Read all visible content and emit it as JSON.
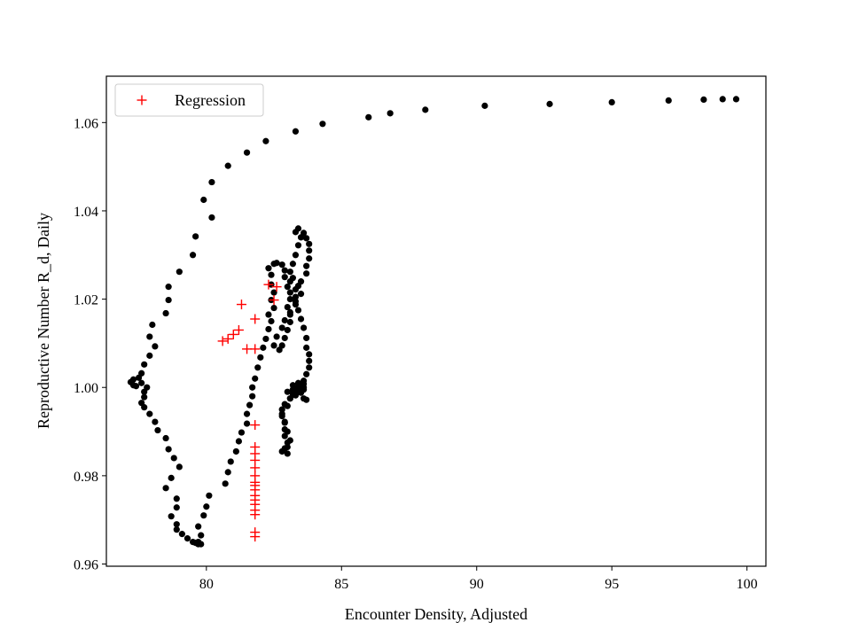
{
  "chart_data": {
    "type": "scatter",
    "title": "",
    "xlabel": "Encounter Density, Adjusted",
    "ylabel": "Reproductive Number R_d, Daily",
    "xlim": [
      76.3,
      100.7
    ],
    "ylim": [
      0.9595,
      1.0705
    ],
    "xticks": [
      80,
      85,
      90,
      95,
      100
    ],
    "yticks": [
      0.96,
      0.98,
      1.0,
      1.02,
      1.04,
      1.06
    ],
    "ytick_labels": [
      "0.96",
      "0.98",
      "1.00",
      "1.02",
      "1.04",
      "1.06"
    ],
    "grid": false,
    "legend": {
      "placement": "top-left",
      "entries": [
        {
          "label": "Regression",
          "marker": "+",
          "color": "#ff0000"
        }
      ]
    },
    "series": [
      {
        "marker": "dot",
        "color": "#000000",
        "points": [
          [
            99.6,
            1.0653
          ],
          [
            99.1,
            1.0653
          ],
          [
            98.4,
            1.0652
          ],
          [
            97.1,
            1.065
          ],
          [
            95.0,
            1.0646
          ],
          [
            92.7,
            1.0642
          ],
          [
            90.3,
            1.0638
          ],
          [
            88.1,
            1.0629
          ],
          [
            86.8,
            1.0621
          ],
          [
            86.0,
            1.0612
          ],
          [
            84.3,
            1.0597
          ],
          [
            83.3,
            1.058
          ],
          [
            82.2,
            1.0558
          ],
          [
            81.5,
            1.0532
          ],
          [
            80.8,
            1.0502
          ],
          [
            80.2,
            1.0465
          ],
          [
            79.9,
            1.0425
          ],
          [
            80.2,
            1.0385
          ],
          [
            79.6,
            1.0342
          ],
          [
            79.5,
            1.03
          ],
          [
            79.0,
            1.0262
          ],
          [
            78.6,
            1.0228
          ],
          [
            78.6,
            1.0198
          ],
          [
            78.5,
            1.0168
          ],
          [
            78.0,
            1.0142
          ],
          [
            77.9,
            1.0115
          ],
          [
            78.1,
            1.0093
          ],
          [
            77.9,
            1.0072
          ],
          [
            77.7,
            1.0052
          ],
          [
            77.6,
            1.0032
          ],
          [
            77.5,
            1.0022
          ],
          [
            77.3,
            1.0018
          ],
          [
            77.2,
            1.0012
          ],
          [
            77.3,
            1.0005
          ],
          [
            77.4,
            1.0003
          ],
          [
            77.6,
            1.001
          ],
          [
            77.8,
            1.0
          ],
          [
            77.7,
            0.999
          ],
          [
            77.7,
            0.9978
          ],
          [
            77.6,
            0.9965
          ],
          [
            77.7,
            0.9955
          ],
          [
            77.9,
            0.994
          ],
          [
            78.1,
            0.9922
          ],
          [
            78.2,
            0.9903
          ],
          [
            78.5,
            0.9885
          ],
          [
            78.6,
            0.986
          ],
          [
            78.8,
            0.984
          ],
          [
            79.0,
            0.982
          ],
          [
            78.7,
            0.9795
          ],
          [
            78.5,
            0.9772
          ],
          [
            78.9,
            0.9748
          ],
          [
            78.9,
            0.9728
          ],
          [
            78.7,
            0.9708
          ],
          [
            78.9,
            0.969
          ],
          [
            78.9,
            0.9678
          ],
          [
            79.1,
            0.9668
          ],
          [
            79.3,
            0.9658
          ],
          [
            79.5,
            0.965
          ],
          [
            79.6,
            0.9648
          ],
          [
            79.7,
            0.9645
          ],
          [
            79.8,
            0.9645
          ],
          [
            79.7,
            0.965
          ],
          [
            79.8,
            0.9665
          ],
          [
            79.7,
            0.9685
          ],
          [
            79.9,
            0.971
          ],
          [
            80.0,
            0.973
          ],
          [
            80.1,
            0.9755
          ],
          [
            80.7,
            0.9782
          ],
          [
            80.8,
            0.9808
          ],
          [
            80.9,
            0.9832
          ],
          [
            81.1,
            0.9855
          ],
          [
            81.2,
            0.9878
          ],
          [
            81.3,
            0.9898
          ],
          [
            81.5,
            0.9918
          ],
          [
            81.5,
            0.994
          ],
          [
            81.6,
            0.996
          ],
          [
            81.7,
            0.998
          ],
          [
            81.7,
            1.0
          ],
          [
            81.8,
            1.002
          ],
          [
            81.9,
            1.0045
          ],
          [
            82.0,
            1.0068
          ],
          [
            82.1,
            1.009
          ],
          [
            82.2,
            1.011
          ],
          [
            82.3,
            1.0132
          ],
          [
            82.4,
            1.015
          ],
          [
            82.3,
            1.0165
          ],
          [
            82.5,
            1.018
          ],
          [
            82.4,
            1.0198
          ],
          [
            82.5,
            1.0215
          ],
          [
            82.4,
            1.0233
          ],
          [
            82.4,
            1.0255
          ],
          [
            82.3,
            1.027
          ],
          [
            82.5,
            1.028
          ],
          [
            82.6,
            1.0282
          ],
          [
            82.8,
            1.0278
          ],
          [
            82.9,
            1.0265
          ],
          [
            82.9,
            1.025
          ],
          [
            83.1,
            1.024
          ],
          [
            83.0,
            1.0228
          ],
          [
            83.1,
            1.0215
          ],
          [
            83.1,
            1.02
          ],
          [
            83.0,
            1.0182
          ],
          [
            83.1,
            1.0165
          ],
          [
            83.1,
            1.0148
          ],
          [
            83.0,
            1.013
          ],
          [
            82.9,
            1.0112
          ],
          [
            82.8,
            1.0095
          ],
          [
            82.7,
            1.0085
          ],
          [
            82.5,
            1.0095
          ],
          [
            82.6,
            1.0115
          ],
          [
            82.8,
            1.0135
          ],
          [
            82.9,
            1.0152
          ],
          [
            83.1,
            1.017
          ],
          [
            83.3,
            1.0188
          ],
          [
            83.3,
            1.0205
          ],
          [
            83.3,
            1.0222
          ],
          [
            83.5,
            1.024
          ],
          [
            83.7,
            1.0258
          ],
          [
            83.7,
            1.0275
          ],
          [
            83.8,
            1.0292
          ],
          [
            83.8,
            1.031
          ],
          [
            83.8,
            1.0325
          ],
          [
            83.7,
            1.0338
          ],
          [
            83.6,
            1.035
          ],
          [
            83.4,
            1.036
          ],
          [
            83.3,
            1.0352
          ],
          [
            83.5,
            1.034
          ],
          [
            83.4,
            1.0322
          ],
          [
            83.3,
            1.03
          ],
          [
            83.2,
            1.028
          ],
          [
            83.1,
            1.0262
          ],
          [
            83.2,
            1.0248
          ],
          [
            83.4,
            1.023
          ],
          [
            83.5,
            1.0212
          ],
          [
            83.3,
            1.0195
          ],
          [
            83.4,
            1.0175
          ],
          [
            83.5,
            1.0155
          ],
          [
            83.6,
            1.0135
          ],
          [
            83.7,
            1.0112
          ],
          [
            83.7,
            1.009
          ],
          [
            83.8,
            1.0075
          ],
          [
            83.8,
            1.006
          ],
          [
            83.8,
            1.0045
          ],
          [
            83.7,
            1.003
          ],
          [
            83.6,
            1.0015
          ],
          [
            83.6,
            1.0
          ],
          [
            83.4,
            0.9995
          ],
          [
            83.3,
            0.9985
          ],
          [
            83.1,
            0.9975
          ],
          [
            82.9,
            0.9962
          ],
          [
            82.8,
            0.995
          ],
          [
            82.8,
            0.9935
          ],
          [
            82.9,
            0.992
          ],
          [
            82.9,
            0.9905
          ],
          [
            82.9,
            0.989
          ],
          [
            83.0,
            0.9875
          ],
          [
            82.9,
            0.9862
          ],
          [
            82.8,
            0.9855
          ],
          [
            83.0,
            0.985
          ],
          [
            83.0,
            0.9865
          ],
          [
            83.1,
            0.988
          ],
          [
            83.0,
            0.99
          ],
          [
            82.9,
            0.9922
          ],
          [
            82.8,
            0.994
          ],
          [
            83.0,
            0.9958
          ],
          [
            83.1,
            0.9975
          ],
          [
            83.2,
            0.9985
          ],
          [
            83.4,
            0.999
          ],
          [
            83.6,
            0.9975
          ],
          [
            83.6,
            0.9995
          ],
          [
            83.5,
            1.0005
          ],
          [
            83.4,
            1.001
          ],
          [
            83.2,
            0.9995
          ],
          [
            83.0,
            0.999
          ],
          [
            83.3,
            0.9982
          ],
          [
            83.5,
            0.9988
          ],
          [
            83.7,
            0.9972
          ],
          [
            83.4,
            1.0
          ],
          [
            83.2,
            1.0005
          ],
          [
            83.6,
            1.0008
          ]
        ]
      },
      {
        "name": "Regression",
        "marker": "+",
        "color": "#ff0000",
        "points": [
          [
            82.6,
            1.0228
          ],
          [
            82.3,
            1.0233
          ],
          [
            82.5,
            1.0198
          ],
          [
            81.3,
            1.0188
          ],
          [
            81.8,
            1.0155
          ],
          [
            81.2,
            1.013
          ],
          [
            81.0,
            1.012
          ],
          [
            80.8,
            1.011
          ],
          [
            80.6,
            1.0105
          ],
          [
            81.5,
            1.0087
          ],
          [
            81.8,
            1.0087
          ],
          [
            81.8,
            0.9915
          ],
          [
            81.8,
            0.9865
          ],
          [
            81.8,
            0.985
          ],
          [
            81.8,
            0.9835
          ],
          [
            81.8,
            0.9818
          ],
          [
            81.8,
            0.98
          ],
          [
            81.8,
            0.9785
          ],
          [
            81.8,
            0.9778
          ],
          [
            81.8,
            0.9768
          ],
          [
            81.8,
            0.9755
          ],
          [
            81.8,
            0.9745
          ],
          [
            81.8,
            0.9735
          ],
          [
            81.8,
            0.9722
          ],
          [
            81.8,
            0.9712
          ],
          [
            81.8,
            0.9672
          ],
          [
            81.8,
            0.9662
          ]
        ]
      }
    ]
  }
}
